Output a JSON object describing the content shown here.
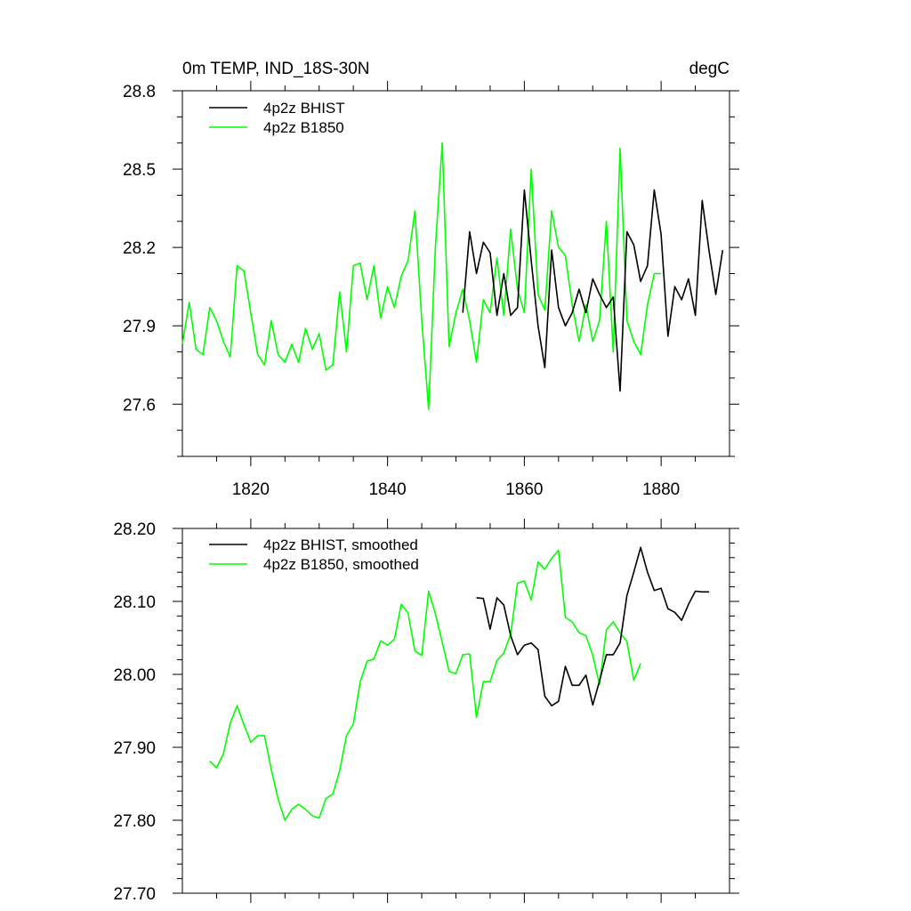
{
  "chart_data": [
    {
      "type": "line",
      "title_left": "0m TEMP, IND_18S-30N",
      "title_right": "degC",
      "xlim": [
        1810,
        1890
      ],
      "ylim": [
        27.4,
        28.8
      ],
      "x_ticks": [
        1820,
        1840,
        1860,
        1880
      ],
      "x_tick_labels": [
        "1820",
        "1840",
        "1860",
        "1880"
      ],
      "y_ticks": [
        27.6,
        27.9,
        28.2,
        28.5,
        28.8
      ],
      "y_tick_labels": [
        "27.6",
        "27.9",
        "28.2",
        "28.5",
        "28.8"
      ],
      "legend_position": "top-left",
      "series": [
        {
          "name": "4p2z BHIST",
          "color": "#000000",
          "x": [
            1851,
            1852,
            1853,
            1854,
            1855,
            1856,
            1857,
            1858,
            1859,
            1860,
            1861,
            1862,
            1863,
            1864,
            1865,
            1866,
            1867,
            1868,
            1869,
            1870,
            1871,
            1872,
            1873,
            1874,
            1875,
            1876,
            1877,
            1878,
            1879,
            1880,
            1881,
            1882,
            1883,
            1884,
            1885,
            1886,
            1887,
            1888,
            1889
          ],
          "y": [
            27.95,
            28.26,
            28.1,
            28.22,
            28.18,
            27.94,
            28.1,
            27.94,
            27.97,
            28.42,
            28.15,
            27.9,
            27.74,
            28.19,
            27.97,
            27.9,
            27.95,
            28.04,
            27.95,
            28.08,
            28.02,
            27.97,
            28.01,
            27.65,
            28.26,
            28.21,
            28.07,
            28.13,
            28.42,
            28.25,
            27.86,
            28.05,
            28.0,
            28.08,
            27.94,
            28.38,
            28.19,
            28.02,
            28.19
          ]
        },
        {
          "name": "4p2z B1850",
          "color": "#00ff00",
          "x": [
            1810,
            1811,
            1812,
            1813,
            1814,
            1815,
            1816,
            1817,
            1818,
            1819,
            1820,
            1821,
            1822,
            1823,
            1824,
            1825,
            1826,
            1827,
            1828,
            1829,
            1830,
            1831,
            1832,
            1833,
            1834,
            1835,
            1836,
            1837,
            1838,
            1839,
            1840,
            1841,
            1842,
            1843,
            1844,
            1845,
            1846,
            1847,
            1848,
            1849,
            1850,
            1851,
            1852,
            1853,
            1854,
            1855,
            1856,
            1857,
            1858,
            1859,
            1860,
            1861,
            1862,
            1863,
            1864,
            1865,
            1866,
            1867,
            1868,
            1869,
            1870,
            1871,
            1872,
            1873,
            1874,
            1875,
            1876,
            1877,
            1878,
            1879,
            1880
          ],
          "y": [
            27.83,
            27.99,
            27.81,
            27.79,
            27.97,
            27.92,
            27.84,
            27.78,
            28.13,
            28.11,
            27.95,
            27.79,
            27.75,
            27.92,
            27.79,
            27.76,
            27.83,
            27.76,
            27.89,
            27.81,
            27.87,
            27.73,
            27.75,
            28.03,
            27.8,
            28.13,
            28.14,
            28.0,
            28.13,
            27.93,
            28.05,
            27.97,
            28.09,
            28.15,
            28.34,
            27.92,
            27.58,
            28.2,
            28.6,
            27.82,
            27.95,
            28.04,
            27.92,
            27.76,
            28.0,
            27.95,
            28.16,
            27.94,
            28.27,
            28.04,
            27.95,
            28.5,
            28.02,
            27.96,
            28.34,
            28.2,
            28.17,
            27.98,
            27.84,
            27.98,
            27.84,
            27.92,
            28.3,
            27.8,
            28.58,
            27.92,
            27.84,
            27.79,
            27.98,
            28.1,
            28.1
          ]
        }
      ]
    },
    {
      "type": "line",
      "xlim": [
        1810,
        1890
      ],
      "ylim": [
        27.7,
        28.2
      ],
      "x_ticks": [
        1820,
        1840,
        1860,
        1880
      ],
      "y_ticks": [
        27.7,
        27.8,
        27.9,
        28.0,
        28.1,
        28.2
      ],
      "y_tick_labels": [
        "27.70",
        "27.80",
        "27.90",
        "28.00",
        "28.10",
        "28.20"
      ],
      "legend_position": "top-left",
      "series": [
        {
          "name": "4p2z BHIST, smoothed",
          "color": "#000000",
          "x": [
            1853,
            1854,
            1855,
            1856,
            1857,
            1858,
            1859,
            1860,
            1861,
            1862,
            1863,
            1864,
            1865,
            1866,
            1867,
            1868,
            1869,
            1870,
            1871,
            1872,
            1873,
            1874,
            1875,
            1876,
            1877,
            1878,
            1879,
            1880,
            1881,
            1882,
            1883,
            1884,
            1885,
            1886,
            1887
          ],
          "y": [
            28.105,
            28.104,
            28.062,
            28.105,
            28.095,
            28.053,
            28.027,
            28.04,
            28.043,
            28.034,
            27.97,
            27.957,
            27.963,
            28.011,
            27.985,
            27.985,
            27.999,
            27.958,
            27.991,
            28.027,
            28.027,
            28.043,
            28.108,
            28.14,
            28.174,
            28.14,
            28.115,
            28.118,
            28.09,
            28.085,
            28.074,
            28.096,
            28.114,
            28.113,
            28.113
          ]
        },
        {
          "name": "4p2z B1850, smoothed",
          "color": "#00ff00",
          "x": [
            1814,
            1815,
            1816,
            1817,
            1818,
            1819,
            1820,
            1821,
            1822,
            1823,
            1824,
            1825,
            1826,
            1827,
            1828,
            1829,
            1830,
            1831,
            1832,
            1833,
            1834,
            1835,
            1836,
            1837,
            1838,
            1839,
            1840,
            1841,
            1842,
            1843,
            1844,
            1845,
            1846,
            1847,
            1848,
            1849,
            1850,
            1851,
            1852,
            1853,
            1854,
            1855,
            1856,
            1857,
            1858,
            1859,
            1860,
            1861,
            1862,
            1863,
            1864,
            1865,
            1866,
            1867,
            1868,
            1869,
            1870,
            1871,
            1872,
            1873,
            1874,
            1875,
            1876,
            1877
          ],
          "y": [
            27.881,
            27.872,
            27.891,
            27.933,
            27.957,
            27.931,
            27.907,
            27.916,
            27.916,
            27.87,
            27.829,
            27.8,
            27.815,
            27.822,
            27.815,
            27.806,
            27.803,
            27.83,
            27.836,
            27.868,
            27.916,
            27.932,
            27.99,
            28.018,
            28.021,
            28.046,
            28.04,
            28.048,
            28.096,
            28.084,
            28.032,
            28.026,
            28.114,
            28.083,
            28.044,
            28.004,
            28.001,
            28.027,
            28.028,
            27.941,
            27.99,
            27.99,
            28.019,
            28.029,
            28.055,
            28.125,
            28.128,
            28.102,
            28.154,
            28.144,
            28.159,
            28.17,
            28.078,
            28.072,
            28.057,
            28.053,
            28.026,
            27.986,
            28.061,
            28.072,
            28.057,
            28.045,
            27.992,
            28.015
          ]
        }
      ]
    }
  ]
}
